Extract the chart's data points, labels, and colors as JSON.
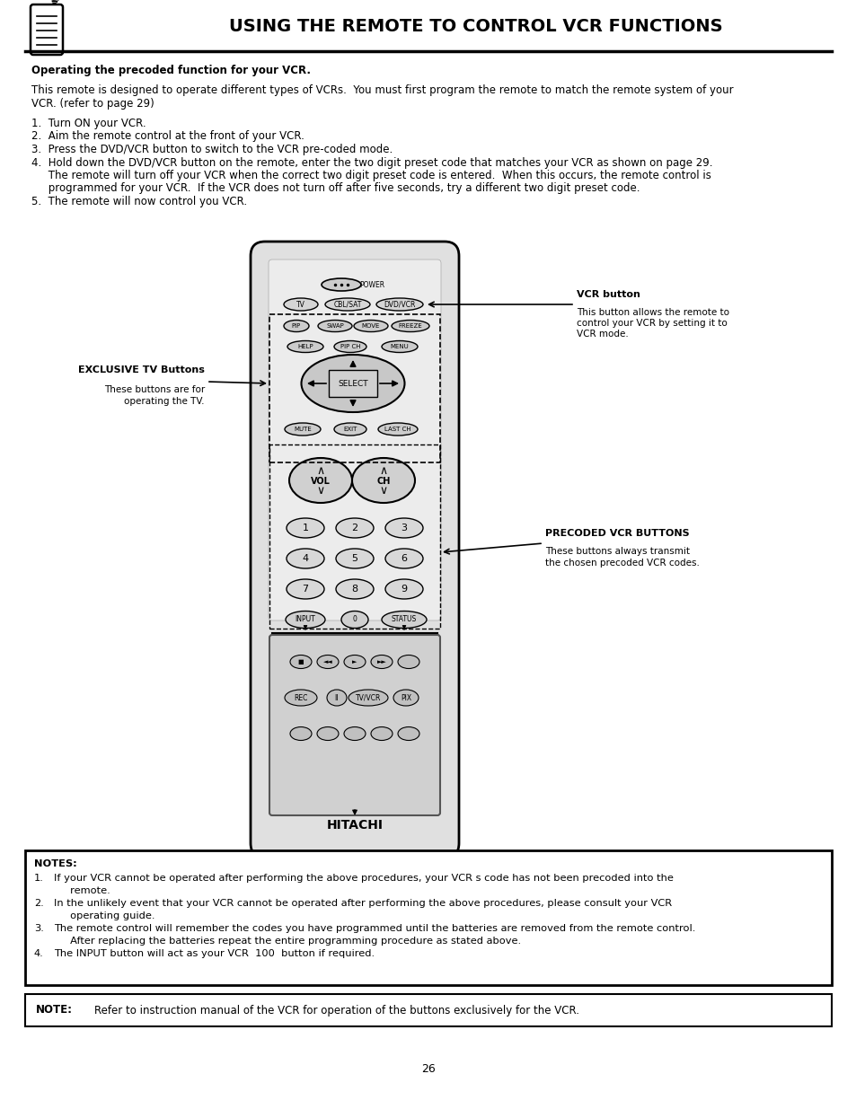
{
  "title": "USING THE REMOTE TO CONTROL VCR FUNCTIONS",
  "page_number": "26",
  "bg_color": "#ffffff",
  "header_bold": "Operating the precoded function for your VCR.",
  "intro_line1": "This remote is designed to operate different types of VCRs.  You must first program the remote to match the remote system of your",
  "intro_line2": "VCR. (refer to page 29)",
  "step1": "Turn ON your VCR.",
  "step2": "Aim the remote control at the front of your VCR.",
  "step3": "Press the DVD/VCR button to switch to the VCR pre-coded mode.",
  "step4a": "Hold down the DVD/VCR button on the remote, enter the two digit preset code that matches your VCR as shown on page 29.",
  "step4b": "     The remote will turn off your VCR when the correct two digit preset code is entered.  When this occurs, the remote control is",
  "step4c": "     programmed for your VCR.  If the VCR does not turn off after five seconds, try a different two digit preset code.",
  "step5": "The remote will now control you VCR.",
  "vcr_button_label": "VCR button",
  "vcr_button_desc1": "This button allows the remote to",
  "vcr_button_desc2": "control your VCR by setting it to",
  "vcr_button_desc3": "VCR mode.",
  "exclusive_label": "EXCLUSIVE TV Buttons",
  "exclusive_desc1": "These buttons are for",
  "exclusive_desc2": "operating the TV.",
  "precoded_label": "PRECODED VCR BUTTONS",
  "precoded_desc1": "These buttons always transmit",
  "precoded_desc2": "the chosen precoded VCR codes.",
  "notes_header": "NOTES:",
  "note1a": "If your VCR cannot be operated after performing the above procedures, your VCR s code has not been precoded into the",
  "note1b": "remote.",
  "note2a": "In the unlikely event that your VCR cannot be operated after performing the above procedures, please consult your VCR",
  "note2b": "operating guide.",
  "note3a": "The remote control will remember the codes you have programmed until the batteries are removed from the remote control.",
  "note3b": "After replacing the batteries repeat the entire programming procedure as stated above.",
  "note4": "The INPUT button will act as your VCR  100  button if required.",
  "note_label": "NOTE:",
  "note_text": "Refer to instruction manual of the VCR for operation of the buttons exclusively for the VCR."
}
